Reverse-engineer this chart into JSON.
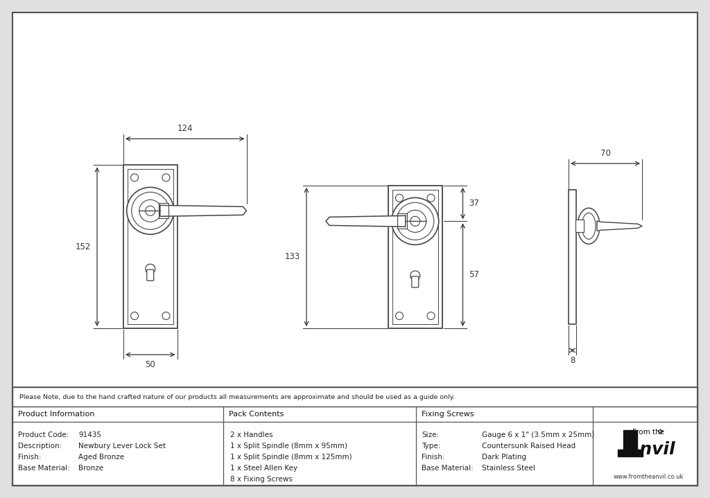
{
  "bg_outer": "#e8e8e8",
  "bg_inner": "#ffffff",
  "lc": "#444444",
  "dc": "#333333",
  "note_text": "Please Note, due to the hand crafted nature of our products all measurements are approximate and should be used as a guide only.",
  "product_info_header": "Product Information",
  "product_info_rows": [
    [
      "Product Code:",
      "91435"
    ],
    [
      "Description:",
      "Newbury Lever Lock Set"
    ],
    [
      "Finish:",
      "Aged Bronze"
    ],
    [
      "Base Material:",
      "Bronze"
    ]
  ],
  "pack_contents_header": "Pack Contents",
  "pack_contents_items": [
    "2 x Handles",
    "1 x Split Spindle (8mm x 95mm)",
    "1 x Split Spindle (8mm x 125mm)",
    "1 x Steel Allen Key",
    "8 x Fixing Screws"
  ],
  "fixing_screws_header": "Fixing Screws",
  "fixing_screws_rows": [
    [
      "Size:",
      "Gauge 6 x 1\" (3.5mm x 25mm)"
    ],
    [
      "Type:",
      "Countersunk Raised Head"
    ],
    [
      "Finish:",
      "Dark Plating"
    ],
    [
      "Base Material:",
      "Stainless Steel"
    ]
  ]
}
